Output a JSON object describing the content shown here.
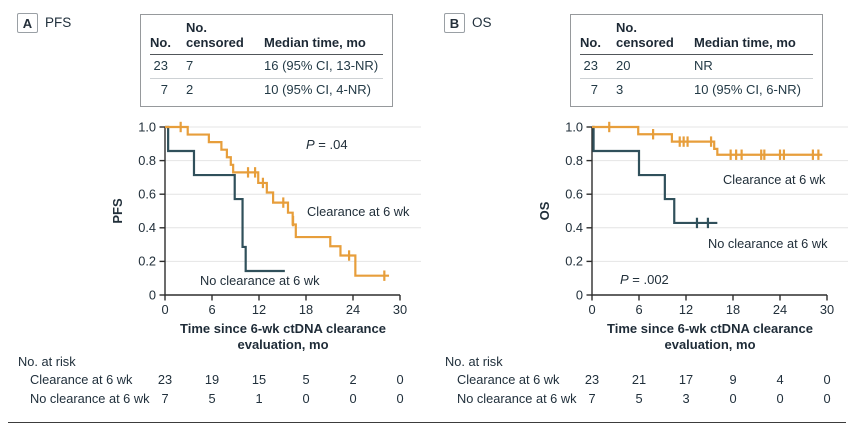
{
  "colors": {
    "clearance": "#e79e3b",
    "no_clearance": "#30505b"
  },
  "panels": [
    {
      "letter": "A",
      "title": "PFS",
      "stats_table": {
        "col1_header": "No.",
        "col2_header_line1": "No.",
        "col2_header_line2": "censored",
        "col3_header": "Median time, mo",
        "rows": [
          {
            "n": "23",
            "censored": "7",
            "median": "16 (95% CI, 13-NR)"
          },
          {
            "n": "7",
            "censored": "2",
            "median": "10 (95% CI, 4-NR)"
          }
        ]
      },
      "xlabel_line1": "Time since 6-wk ctDNA clearance",
      "xlabel_line2": "evaluation, mo",
      "risk": {
        "title": "No. at risk",
        "rows": [
          {
            "label": "Clearance at 6 wk",
            "values": [
              "23",
              "19",
              "15",
              "5",
              "2",
              "0"
            ]
          },
          {
            "label": "No clearance at 6 wk",
            "values": [
              "7",
              "5",
              "1",
              "0",
              "0",
              "0"
            ]
          }
        ]
      }
    },
    {
      "letter": "B",
      "title": "OS",
      "stats_table": {
        "col1_header": "No.",
        "col2_header_line1": "No.",
        "col2_header_line2": "censored",
        "col3_header": "Median time, mo",
        "rows": [
          {
            "n": "23",
            "censored": "20",
            "median": "NR"
          },
          {
            "n": "7",
            "censored": "3",
            "median": "10 (95% CI, 6-NR)"
          }
        ]
      },
      "xlabel_line1": "Time since 6-wk ctDNA clearance",
      "xlabel_line2": "evaluation, mo",
      "risk": {
        "title": "No. at risk",
        "rows": [
          {
            "label": "Clearance at 6 wk",
            "values": [
              "23",
              "21",
              "17",
              "9",
              "4",
              "0"
            ]
          },
          {
            "label": "No clearance at 6 wk",
            "values": [
              "7",
              "5",
              "3",
              "0",
              "0",
              "0"
            ]
          }
        ]
      }
    }
  ],
  "chart_data": [
    {
      "type": "line",
      "subtype": "kaplan-meier-step",
      "ylabel": "PFS",
      "xlabel": "Time since 6-wk ctDNA clearance evaluation, mo",
      "p_value": "P = .04",
      "xlim": [
        0,
        30
      ],
      "ylim": [
        0,
        1
      ],
      "x_ticks": [
        {
          "v": 0,
          "label": "0"
        },
        {
          "v": 6,
          "label": "6"
        },
        {
          "v": 12,
          "label": "12"
        },
        {
          "v": 18,
          "label": "18"
        },
        {
          "v": 24,
          "label": "24"
        },
        {
          "v": 30,
          "label": "30"
        }
      ],
      "y_ticks": [
        {
          "v": 0,
          "label": "0"
        },
        {
          "v": 0.2,
          "label": "0.2"
        },
        {
          "v": 0.4,
          "label": "0.4"
        },
        {
          "v": 0.6,
          "label": "0.6"
        },
        {
          "v": 0.8,
          "label": "0.8"
        },
        {
          "v": 1.0,
          "label": "1.0"
        }
      ],
      "series": [
        {
          "name": "clearance",
          "label": "Clearance at 6 wk",
          "color_key": "clearance",
          "start": 1.0,
          "drops": [
            [
              2.9,
              0.955
            ],
            [
              5.6,
              0.91
            ],
            [
              7.2,
              0.865
            ],
            [
              7.9,
              0.82
            ],
            [
              8.4,
              0.775
            ],
            [
              8.7,
              0.73
            ],
            [
              11.9,
              0.667
            ],
            [
              13.0,
              0.61
            ],
            [
              13.8,
              0.55
            ],
            [
              15.7,
              0.49
            ],
            [
              16.3,
              0.42
            ],
            [
              16.7,
              0.345
            ],
            [
              21.1,
              0.29
            ],
            [
              22.4,
              0.235
            ],
            [
              24.3,
              0.115
            ]
          ],
          "end": 28.6,
          "censors": [
            [
              2.0,
              1.0
            ],
            [
              10.6,
              0.73
            ],
            [
              11.5,
              0.73
            ],
            [
              12.5,
              0.667
            ],
            [
              15.1,
              0.55
            ],
            [
              16.35,
              0.44
            ],
            [
              23.5,
              0.235
            ],
            [
              28.0,
              0.115
            ]
          ]
        },
        {
          "name": "no-clearance",
          "label": "No clearance at 6 wk",
          "color_key": "no_clearance",
          "start": 1.0,
          "drops": [
            [
              0.4,
              0.857
            ],
            [
              3.7,
              0.714
            ],
            [
              8.9,
              0.571
            ],
            [
              9.9,
              0.286
            ],
            [
              10.3,
              0.143
            ]
          ],
          "end": 15.3,
          "censors": []
        }
      ]
    },
    {
      "type": "line",
      "subtype": "kaplan-meier-step",
      "ylabel": "OS",
      "xlabel": "Time since 6-wk ctDNA clearance evaluation, mo",
      "p_value": "P = .002",
      "xlim": [
        0,
        30
      ],
      "ylim": [
        0,
        1
      ],
      "x_ticks": [
        {
          "v": 0,
          "label": "0"
        },
        {
          "v": 6,
          "label": "6"
        },
        {
          "v": 12,
          "label": "12"
        },
        {
          "v": 18,
          "label": "18"
        },
        {
          "v": 24,
          "label": "24"
        },
        {
          "v": 30,
          "label": "30"
        }
      ],
      "y_ticks": [
        {
          "v": 0,
          "label": "0"
        },
        {
          "v": 0.2,
          "label": "0.2"
        },
        {
          "v": 0.4,
          "label": "0.4"
        },
        {
          "v": 0.6,
          "label": "0.6"
        },
        {
          "v": 0.8,
          "label": "0.8"
        },
        {
          "v": 1.0,
          "label": "1.0"
        }
      ],
      "series": [
        {
          "name": "clearance",
          "label": "Clearance at 6 wk",
          "color_key": "clearance",
          "start": 1.0,
          "drops": [
            [
              5.9,
              0.957
            ],
            [
              10.2,
              0.913
            ],
            [
              15.6,
              0.87
            ],
            [
              16.0,
              0.835
            ]
          ],
          "end": 29.4,
          "censors": [
            [
              2.2,
              1.0
            ],
            [
              7.8,
              0.957
            ],
            [
              11.2,
              0.913
            ],
            [
              11.7,
              0.913
            ],
            [
              12.2,
              0.913
            ],
            [
              15.2,
              0.913
            ],
            [
              17.7,
              0.835
            ],
            [
              18.4,
              0.835
            ],
            [
              19.1,
              0.835
            ],
            [
              21.6,
              0.835
            ],
            [
              22.0,
              0.835
            ],
            [
              24.0,
              0.835
            ],
            [
              24.5,
              0.835
            ],
            [
              28.2,
              0.835
            ],
            [
              28.9,
              0.835
            ]
          ]
        },
        {
          "name": "no-clearance",
          "label": "No clearance at 6 wk",
          "color_key": "no_clearance",
          "start": 1.0,
          "drops": [
            [
              0.2,
              0.857
            ],
            [
              6.0,
              0.714
            ],
            [
              9.3,
              0.571
            ],
            [
              10.5,
              0.429
            ]
          ],
          "end": 16.0,
          "censors": [
            [
              13.4,
              0.429
            ],
            [
              14.8,
              0.429
            ]
          ]
        }
      ]
    }
  ]
}
